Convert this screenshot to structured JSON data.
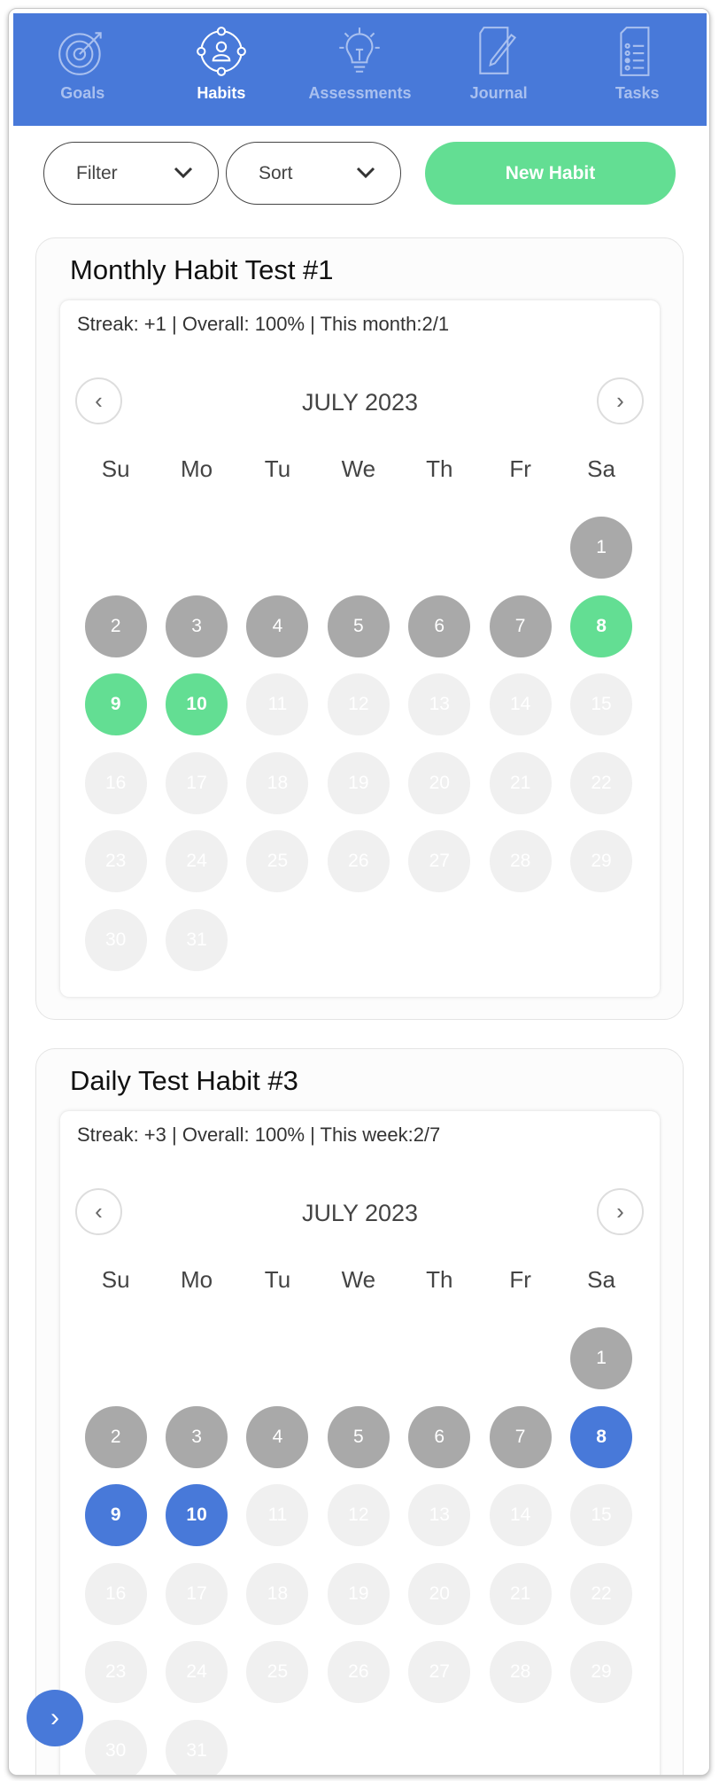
{
  "nav": [
    {
      "label": "Goals",
      "icon": "target-icon",
      "active": false
    },
    {
      "label": "Habits",
      "icon": "habits-person-icon",
      "active": true
    },
    {
      "label": "Assessments",
      "icon": "lightbulb-icon",
      "active": false
    },
    {
      "label": "Journal",
      "icon": "journal-pen-icon",
      "active": false
    },
    {
      "label": "Tasks",
      "icon": "task-list-icon",
      "active": false
    }
  ],
  "toolbar": {
    "filter_label": "Filter",
    "sort_label": "Sort",
    "new_habit_label": "New Habit"
  },
  "weekdays": [
    "Su",
    "Mo",
    "Tu",
    "We",
    "Th",
    "Fr",
    "Sa"
  ],
  "colors": {
    "header": "#4879d9",
    "green": "#63de93",
    "blue": "#4879d9",
    "missed": "#a9a9a9",
    "future": "#f0f0f0"
  },
  "habits": [
    {
      "title": "Monthly Habit Test #1",
      "stats": "Streak: +1 | Overall: 100% | This month:2/1",
      "month": "JULY 2023",
      "start_weekday": "Sa",
      "days_in_month": 31,
      "missed_days": [
        1,
        2,
        3,
        4,
        5,
        6,
        7
      ],
      "completed_days": [
        8,
        9,
        10
      ],
      "completed_color": "#63de93"
    },
    {
      "title": "Daily Test Habit #3",
      "stats": "Streak: +3 | Overall: 100% | This week:2/7",
      "month": "JULY 2023",
      "start_weekday": "Sa",
      "days_in_month": 31,
      "missed_days": [
        1,
        2,
        3,
        4,
        5,
        6,
        7
      ],
      "completed_days": [
        8,
        9,
        10
      ],
      "completed_color": "#4879d9"
    }
  ],
  "fab": {
    "icon": "chevron-right-icon"
  }
}
